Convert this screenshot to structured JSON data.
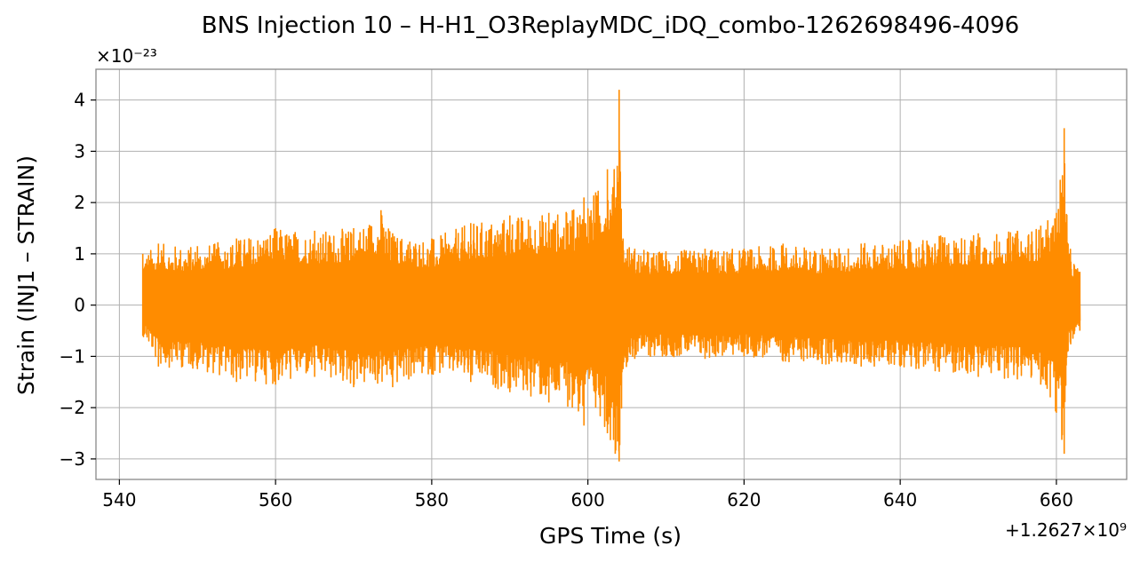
{
  "chart_data": {
    "type": "line",
    "title": "BNS Injection 10 – H-H1_O3ReplayMDC_iDQ_combo-1262698496-4096",
    "xlabel": "GPS Time (s)",
    "ylabel": "Strain (INJ1 – STRAIN)",
    "x_offset_label": "+1.2627×10⁹",
    "y_scale_label": "×10⁻²³",
    "xlim": [
      537,
      669
    ],
    "ylim": [
      -3.4,
      4.6
    ],
    "x_ticks": [
      540,
      560,
      580,
      600,
      620,
      640,
      660
    ],
    "y_ticks": [
      -3,
      -2,
      -1,
      0,
      1,
      2,
      3,
      4
    ],
    "x_tick_labels": [
      "540",
      "560",
      "580",
      "600",
      "620",
      "640",
      "660"
    ],
    "y_tick_labels": [
      "−3",
      "−2",
      "−1",
      "0",
      "1",
      "2",
      "3",
      "4"
    ],
    "grid": true,
    "color": "#ff8c00",
    "series": [
      {
        "x_range": [
          543,
          663
        ],
        "envelope_upper": [
          [
            543.0,
            1.0
          ],
          [
            545.0,
            1.2
          ],
          [
            550.0,
            1.15
          ],
          [
            555.0,
            1.3
          ],
          [
            560.0,
            1.5
          ],
          [
            565.0,
            1.45
          ],
          [
            570.0,
            1.5
          ],
          [
            573.5,
            1.85
          ],
          [
            575.0,
            1.4
          ],
          [
            580.0,
            1.3
          ],
          [
            585.0,
            1.6
          ],
          [
            590.0,
            1.75
          ],
          [
            595.0,
            1.8
          ],
          [
            598.0,
            1.85
          ],
          [
            599.5,
            2.1
          ],
          [
            601.0,
            2.2
          ],
          [
            602.5,
            2.65
          ],
          [
            603.2,
            2.3
          ],
          [
            604.0,
            4.2
          ],
          [
            604.5,
            1.3
          ],
          [
            606.0,
            1.1
          ],
          [
            610.0,
            1.05
          ],
          [
            615.0,
            1.1
          ],
          [
            620.0,
            1.1
          ],
          [
            625.0,
            1.2
          ],
          [
            630.0,
            1.1
          ],
          [
            635.0,
            1.2
          ],
          [
            640.0,
            1.25
          ],
          [
            645.0,
            1.35
          ],
          [
            650.0,
            1.4
          ],
          [
            655.0,
            1.45
          ],
          [
            658.0,
            1.55
          ],
          [
            660.0,
            1.8
          ],
          [
            661.0,
            3.45
          ],
          [
            661.5,
            1.2
          ],
          [
            663.0,
            0.65
          ]
        ],
        "envelope_lower": [
          [
            543.0,
            -0.6
          ],
          [
            545.0,
            -1.2
          ],
          [
            550.0,
            -1.25
          ],
          [
            555.0,
            -1.5
          ],
          [
            560.0,
            -1.55
          ],
          [
            565.0,
            -1.4
          ],
          [
            570.0,
            -1.6
          ],
          [
            575.0,
            -1.6
          ],
          [
            580.0,
            -1.35
          ],
          [
            585.0,
            -1.5
          ],
          [
            590.0,
            -1.7
          ],
          [
            595.0,
            -1.9
          ],
          [
            598.0,
            -2.0
          ],
          [
            599.5,
            -2.35
          ],
          [
            601.0,
            -2.0
          ],
          [
            602.5,
            -2.5
          ],
          [
            603.5,
            -2.9
          ],
          [
            604.0,
            -3.05
          ],
          [
            604.5,
            -1.25
          ],
          [
            606.0,
            -1.05
          ],
          [
            610.0,
            -1.0
          ],
          [
            615.0,
            -1.05
          ],
          [
            620.0,
            -1.0
          ],
          [
            625.0,
            -1.1
          ],
          [
            630.0,
            -1.15
          ],
          [
            635.0,
            -1.2
          ],
          [
            640.0,
            -1.2
          ],
          [
            645.0,
            -1.3
          ],
          [
            650.0,
            -1.4
          ],
          [
            655.0,
            -1.45
          ],
          [
            658.0,
            -1.55
          ],
          [
            660.0,
            -2.1
          ],
          [
            661.0,
            -2.9
          ],
          [
            661.5,
            -0.9
          ],
          [
            663.0,
            -0.5
          ]
        ]
      }
    ]
  }
}
